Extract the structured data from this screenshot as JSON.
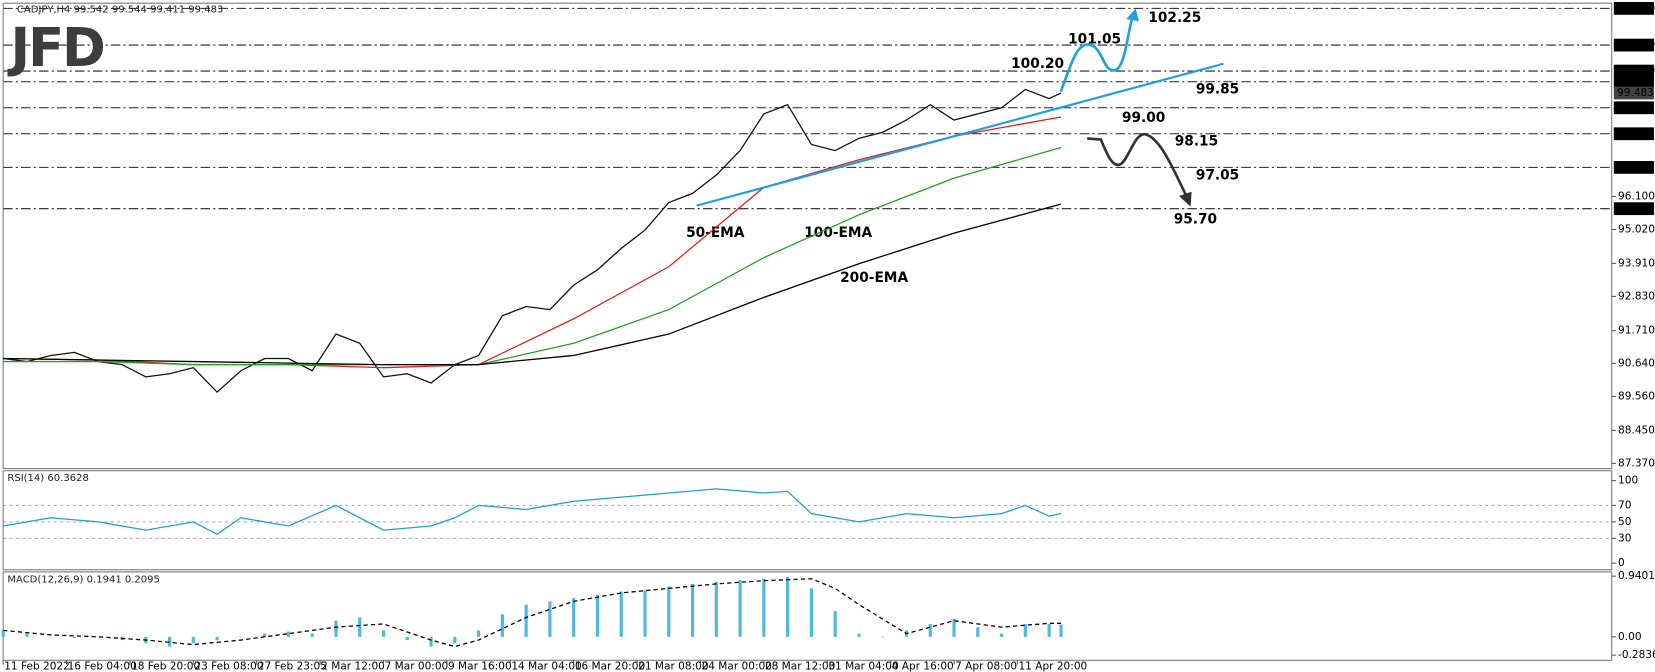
{
  "logo": "JFD",
  "chart_data": [
    {
      "type": "line",
      "title": "CADJPY,H4  99.542 99.544 99.411 99.483",
      "xlim": [
        0,
        406
      ],
      "ylim": [
        87.2,
        102.42
      ],
      "yticks": [
        {
          "value": 96.1,
          "label": "96.100"
        },
        {
          "value": 95.02,
          "label": "95.020"
        },
        {
          "value": 93.91,
          "label": "93.910"
        },
        {
          "value": 92.83,
          "label": "92.830"
        },
        {
          "value": 91.71,
          "label": "91.710"
        },
        {
          "value": 90.64,
          "label": "90.640"
        },
        {
          "value": 89.56,
          "label": "89.560"
        },
        {
          "value": 88.45,
          "label": "88.450"
        },
        {
          "value": 87.37,
          "label": "87.370"
        }
      ],
      "levels": [
        {
          "value": 102.25,
          "label": "102.250"
        },
        {
          "value": 101.05,
          "label": "101.050"
        },
        {
          "value": 100.2,
          "label": "100.200"
        },
        {
          "value": 99.85,
          "label": "99.850"
        },
        {
          "value": 99.0,
          "label": "99.000"
        },
        {
          "value": 98.15,
          "label": "98.150"
        },
        {
          "value": 97.05,
          "label": "97.050"
        },
        {
          "value": 95.7,
          "label": "95.700"
        }
      ],
      "last_price": {
        "value": 99.483,
        "label": "99.483"
      },
      "series": [
        {
          "color": "#111111",
          "x": [
            0,
            6,
            12,
            18,
            24,
            30,
            36,
            42,
            48,
            54,
            60,
            66,
            72,
            78,
            84,
            90,
            96,
            102,
            108,
            114,
            120,
            126,
            132,
            138,
            144,
            150,
            156,
            162,
            168,
            174,
            180,
            186,
            192,
            198,
            204,
            210,
            216,
            222,
            228,
            234,
            240,
            246,
            252,
            258,
            264,
            267
          ],
          "values": [
            90.8,
            90.7,
            90.9,
            91.0,
            90.7,
            90.6,
            90.2,
            90.3,
            90.5,
            89.7,
            90.4,
            90.8,
            90.8,
            90.4,
            91.6,
            91.3,
            90.2,
            90.3,
            90.0,
            90.6,
            90.9,
            92.2,
            92.5,
            92.4,
            93.2,
            93.7,
            94.4,
            95.0,
            95.9,
            96.2,
            96.8,
            97.6,
            98.8,
            99.1,
            97.8,
            97.6,
            98.0,
            98.2,
            98.6,
            99.1,
            98.6,
            98.8,
            99.0,
            99.6,
            99.3,
            99.48
          ]
        },
        {
          "name": "50-EMA",
          "color": "#e02020",
          "x": [
            0,
            24,
            48,
            72,
            96,
            120,
            144,
            168,
            192,
            216,
            240,
            267
          ],
          "values": [
            90.8,
            90.75,
            90.6,
            90.6,
            90.5,
            90.6,
            92.1,
            93.8,
            96.4,
            97.3,
            98.07,
            98.7
          ]
        },
        {
          "name": "100-EMA",
          "color": "#22a022",
          "x": [
            0,
            24,
            48,
            72,
            96,
            120,
            144,
            168,
            192,
            216,
            240,
            267
          ],
          "values": [
            90.7,
            90.7,
            90.6,
            90.6,
            90.6,
            90.6,
            91.3,
            92.4,
            94.1,
            95.5,
            96.7,
            97.7
          ]
        },
        {
          "name": "200-EMA",
          "color": "#000000",
          "x": [
            0,
            24,
            48,
            72,
            96,
            120,
            144,
            168,
            192,
            216,
            240,
            267
          ],
          "values": [
            90.8,
            90.75,
            90.7,
            90.65,
            90.6,
            90.6,
            90.9,
            91.6,
            92.8,
            93.9,
            94.9,
            95.85
          ]
        },
        {
          "color": "#1e9fd6",
          "width": 2,
          "x": [
            175,
            308
          ],
          "values": [
            95.8,
            100.44
          ]
        }
      ],
      "scenarios": [
        {
          "color": "#1ea3d8",
          "labels": [
            "100.20",
            "101.05",
            "102.25",
            "99.85"
          ]
        },
        {
          "color": "#333333",
          "labels": [
            "99.00",
            "98.15",
            "97.05",
            "95.70"
          ]
        }
      ]
    },
    {
      "type": "line",
      "title": "RSI(14) 60.3628",
      "xlim": [
        0,
        406
      ],
      "ylim": [
        -8,
        112
      ],
      "yticks": [
        100,
        70,
        50,
        30,
        0
      ],
      "level_lines": [
        70,
        50,
        30
      ],
      "series": [
        {
          "color": "#1e9fd6",
          "x": [
            0,
            12,
            24,
            36,
            48,
            54,
            60,
            72,
            84,
            96,
            108,
            114,
            120,
            132,
            144,
            156,
            168,
            180,
            192,
            198,
            204,
            216,
            228,
            240,
            252,
            258,
            264,
            267
          ],
          "values": [
            45,
            55,
            50,
            40,
            50,
            35,
            55,
            45,
            70,
            40,
            45,
            55,
            70,
            65,
            75,
            80,
            85,
            90,
            85,
            87,
            60,
            50,
            60,
            55,
            60,
            70,
            57,
            60.36
          ]
        }
      ]
    },
    {
      "type": "bar",
      "title": "MACD(12,26,9) 0.1941 0.2095",
      "xlim": [
        0,
        406
      ],
      "ylim": [
        -0.363,
        1.006
      ],
      "yticks": [
        0.9401,
        {
          "value": 0,
          "label": "0.00"
        },
        -0.2836
      ],
      "xticks": [
        {
          "value": 0,
          "label": "11 Feb 2022"
        },
        {
          "value": 16,
          "label": "16 Feb 04:00"
        },
        {
          "value": 32,
          "label": "18 Feb 20:00"
        },
        {
          "value": 48,
          "label": "23 Feb 08:00"
        },
        {
          "value": 64,
          "label": "27 Feb 23:05"
        },
        {
          "value": 80,
          "label": "2 Mar 12:00"
        },
        {
          "value": 96,
          "label": "7 Mar 00:00"
        },
        {
          "value": 112,
          "label": "9 Mar 16:00"
        },
        {
          "value": 128,
          "label": "14 Mar 04:00"
        },
        {
          "value": 144,
          "label": "16 Mar 20:00"
        },
        {
          "value": 160,
          "label": "21 Mar 08:00"
        },
        {
          "value": 176,
          "label": "24 Mar 00:00"
        },
        {
          "value": 192,
          "label": "28 Mar 12:00"
        },
        {
          "value": 208,
          "label": "31 Mar 04:00"
        },
        {
          "value": 224,
          "label": "4 Apr 16:00"
        },
        {
          "value": 240,
          "label": "7 Apr 08:00"
        },
        {
          "value": 256,
          "label": "11 Apr 20:00"
        }
      ],
      "series": [
        {
          "type": "bar",
          "color": "#4fb8e2",
          "x": [
            0,
            6,
            12,
            18,
            24,
            30,
            36,
            42,
            48,
            54,
            60,
            66,
            72,
            78,
            84,
            90,
            96,
            102,
            108,
            114,
            120,
            126,
            132,
            138,
            144,
            150,
            156,
            162,
            168,
            174,
            180,
            186,
            192,
            198,
            204,
            210,
            216,
            222,
            228,
            234,
            240,
            246,
            252,
            258,
            264,
            267
          ],
          "values": [
            0.1,
            0.05,
            0.0,
            -0.02,
            0.0,
            -0.05,
            -0.1,
            -0.15,
            -0.1,
            -0.05,
            0.0,
            0.05,
            0.08,
            0.05,
            0.25,
            0.3,
            0.1,
            -0.05,
            -0.15,
            -0.1,
            0.1,
            0.35,
            0.5,
            0.55,
            0.6,
            0.65,
            0.7,
            0.72,
            0.78,
            0.82,
            0.85,
            0.88,
            0.9,
            0.93,
            0.75,
            0.4,
            0.05,
            0.0,
            0.1,
            0.2,
            0.28,
            0.15,
            0.05,
            0.2,
            0.2,
            0.19
          ]
        },
        {
          "type": "line",
          "dash": true,
          "color": "#000000",
          "x": [
            0,
            12,
            24,
            36,
            48,
            60,
            72,
            84,
            96,
            108,
            114,
            120,
            132,
            144,
            156,
            168,
            180,
            192,
            204,
            210,
            216,
            228,
            240,
            252,
            264,
            267
          ],
          "values": [
            0.1,
            0.03,
            0.0,
            -0.05,
            -0.12,
            -0.05,
            0.05,
            0.15,
            0.2,
            -0.05,
            -0.15,
            -0.05,
            0.3,
            0.55,
            0.68,
            0.75,
            0.82,
            0.87,
            0.9,
            0.75,
            0.5,
            0.05,
            0.25,
            0.15,
            0.21,
            0.2095
          ]
        }
      ]
    }
  ]
}
